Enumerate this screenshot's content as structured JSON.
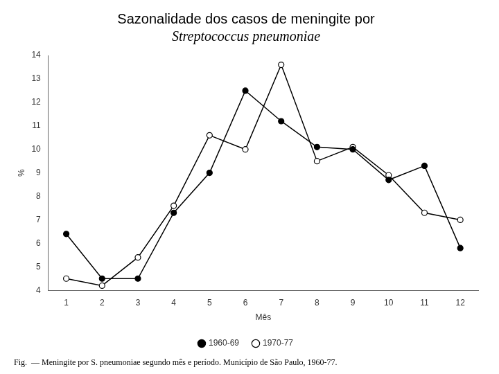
{
  "chart_data": {
    "type": "line",
    "title": "Sazonalidade dos casos de meningite por",
    "subtitle": "Streptococcus pneumoniae",
    "xlabel": "Mês",
    "ylabel": "%",
    "x": [
      1,
      2,
      3,
      4,
      5,
      6,
      7,
      8,
      9,
      10,
      11,
      12
    ],
    "series": [
      {
        "name": "1960-69",
        "color": "#000000",
        "marker": "filled_circle",
        "values": [
          6.4,
          4.5,
          4.5,
          7.3,
          9.0,
          12.5,
          11.2,
          10.1,
          10.0,
          8.7,
          9.3,
          5.8
        ]
      },
      {
        "name": "1970-77",
        "color": "#000000",
        "marker": "open_circle",
        "values": [
          4.5,
          4.2,
          5.4,
          7.6,
          10.6,
          10.0,
          13.6,
          9.5,
          10.1,
          8.9,
          7.3,
          7.0
        ]
      }
    ],
    "xlim": [
      0.5,
      12.5
    ],
    "xticks": [
      1,
      2,
      3,
      4,
      5,
      6,
      7,
      8,
      9,
      10,
      11,
      12
    ],
    "ylim": [
      4,
      14
    ],
    "yticks": [
      4,
      5,
      6,
      7,
      8,
      9,
      10,
      11,
      12,
      13,
      14
    ],
    "grid": false,
    "legend": "bottom",
    "annotations": [
      "Fig.  — Meningite por S. pneumoniae segundo mês e período. Município de São Paulo, 1960-77."
    ]
  }
}
